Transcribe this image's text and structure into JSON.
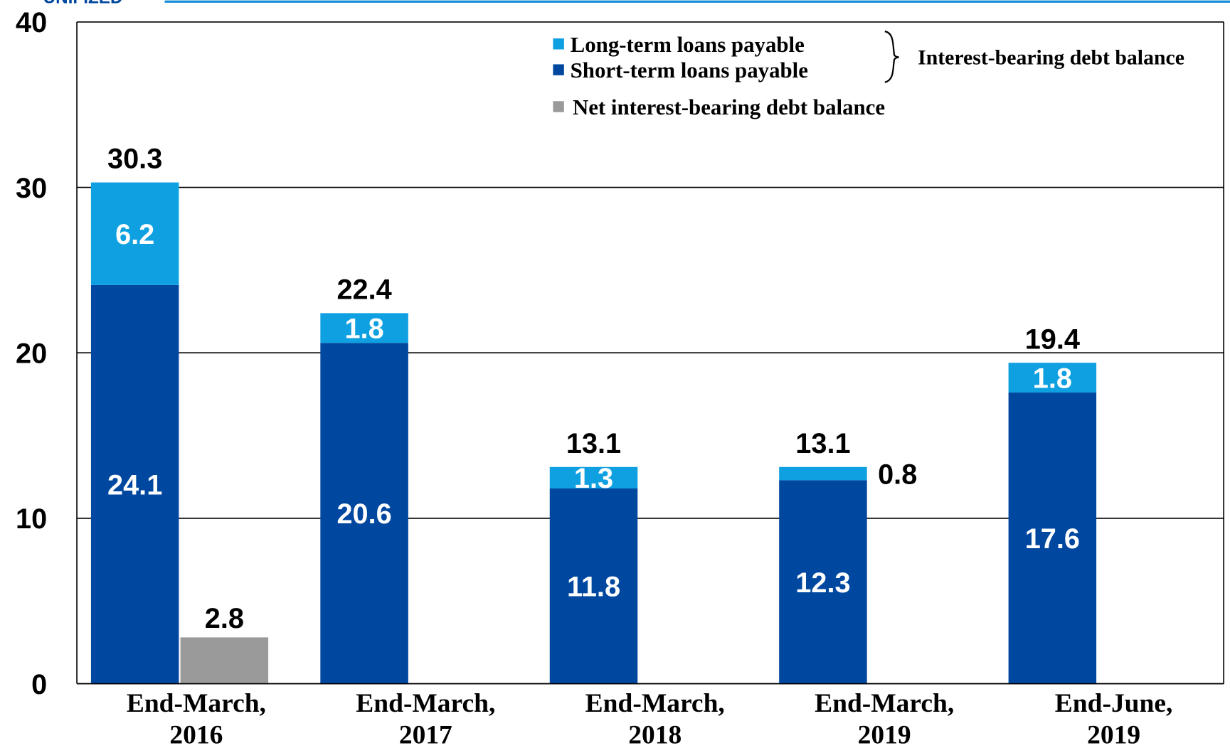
{
  "header_logo": "UNIFIZED",
  "chart_data": {
    "type": "stacked_bar",
    "categories": [
      [
        "End-March,",
        "2016"
      ],
      [
        "End-March,",
        "2017"
      ],
      [
        "End-March,",
        "2018"
      ],
      [
        "End-March,",
        "2019"
      ],
      [
        "End-June,",
        "2019"
      ]
    ],
    "series": [
      {
        "name": "Short-term loans payable",
        "color": "#0047a0",
        "values": [
          24.1,
          20.6,
          11.8,
          12.3,
          17.6
        ]
      },
      {
        "name": "Long-term loans payable",
        "color": "#0ea0e0",
        "values": [
          6.2,
          1.8,
          1.3,
          0.8,
          1.8
        ]
      }
    ],
    "totals": [
      30.3,
      22.4,
      13.1,
      13.1,
      19.4
    ],
    "net_series": {
      "name": "Net interest-bearing debt balance",
      "color": "#9a9a9a",
      "values": [
        2.8,
        null,
        null,
        null,
        null
      ]
    },
    "brace_label": "Interest-bearing debt balance",
    "ylim": [
      0,
      40
    ],
    "yticks": [
      0,
      10,
      20,
      30,
      40
    ],
    "grid": true
  }
}
